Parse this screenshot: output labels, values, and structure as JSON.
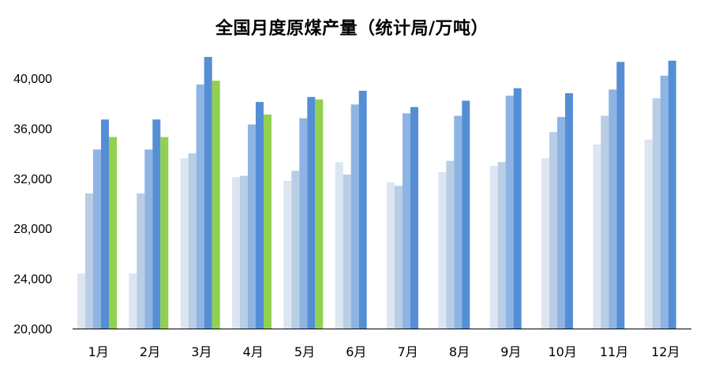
{
  "title": "全国月度原煤产量（统计局/万吨）",
  "chart_data": {
    "type": "bar",
    "title": "全国月度原煤产量（统计局/万吨）",
    "xlabel": "",
    "ylabel": "",
    "categories": [
      "1月",
      "2月",
      "3月",
      "4月",
      "5月",
      "6月",
      "7月",
      "8月",
      "9月",
      "10月",
      "11月",
      "12月"
    ],
    "ylim": [
      20000,
      40000
    ],
    "yticks": [
      20000,
      24000,
      28000,
      32000,
      36000,
      40000
    ],
    "ytick_labels": [
      "20,000",
      "24,000",
      "28,000",
      "32,000",
      "36,000",
      "40,000"
    ],
    "grid": false,
    "legend": "none",
    "series": [
      {
        "color": "#dce6f2",
        "values": [
          24400,
          24400,
          33600,
          32100,
          31800,
          33300,
          31700,
          32500,
          33000,
          33600,
          34700,
          35100
        ]
      },
      {
        "color": "#b9cde5",
        "values": [
          30800,
          30800,
          34000,
          32200,
          32600,
          32300,
          31400,
          33400,
          33300,
          35700,
          37000,
          38400
        ]
      },
      {
        "color": "#8eb4e3",
        "values": [
          34300,
          34300,
          39500,
          36300,
          36800,
          37900,
          37200,
          37000,
          38600,
          36900,
          39100,
          40200
        ]
      },
      {
        "color": "#558ed5",
        "values": [
          36700,
          36700,
          41700,
          38100,
          38500,
          39000,
          37700,
          38200,
          39200,
          38800,
          41300,
          41400
        ]
      },
      {
        "color": "#92d050",
        "values": [
          35300,
          35300,
          39800,
          37100,
          38300,
          null,
          null,
          null,
          null,
          null,
          null,
          null
        ]
      }
    ]
  }
}
